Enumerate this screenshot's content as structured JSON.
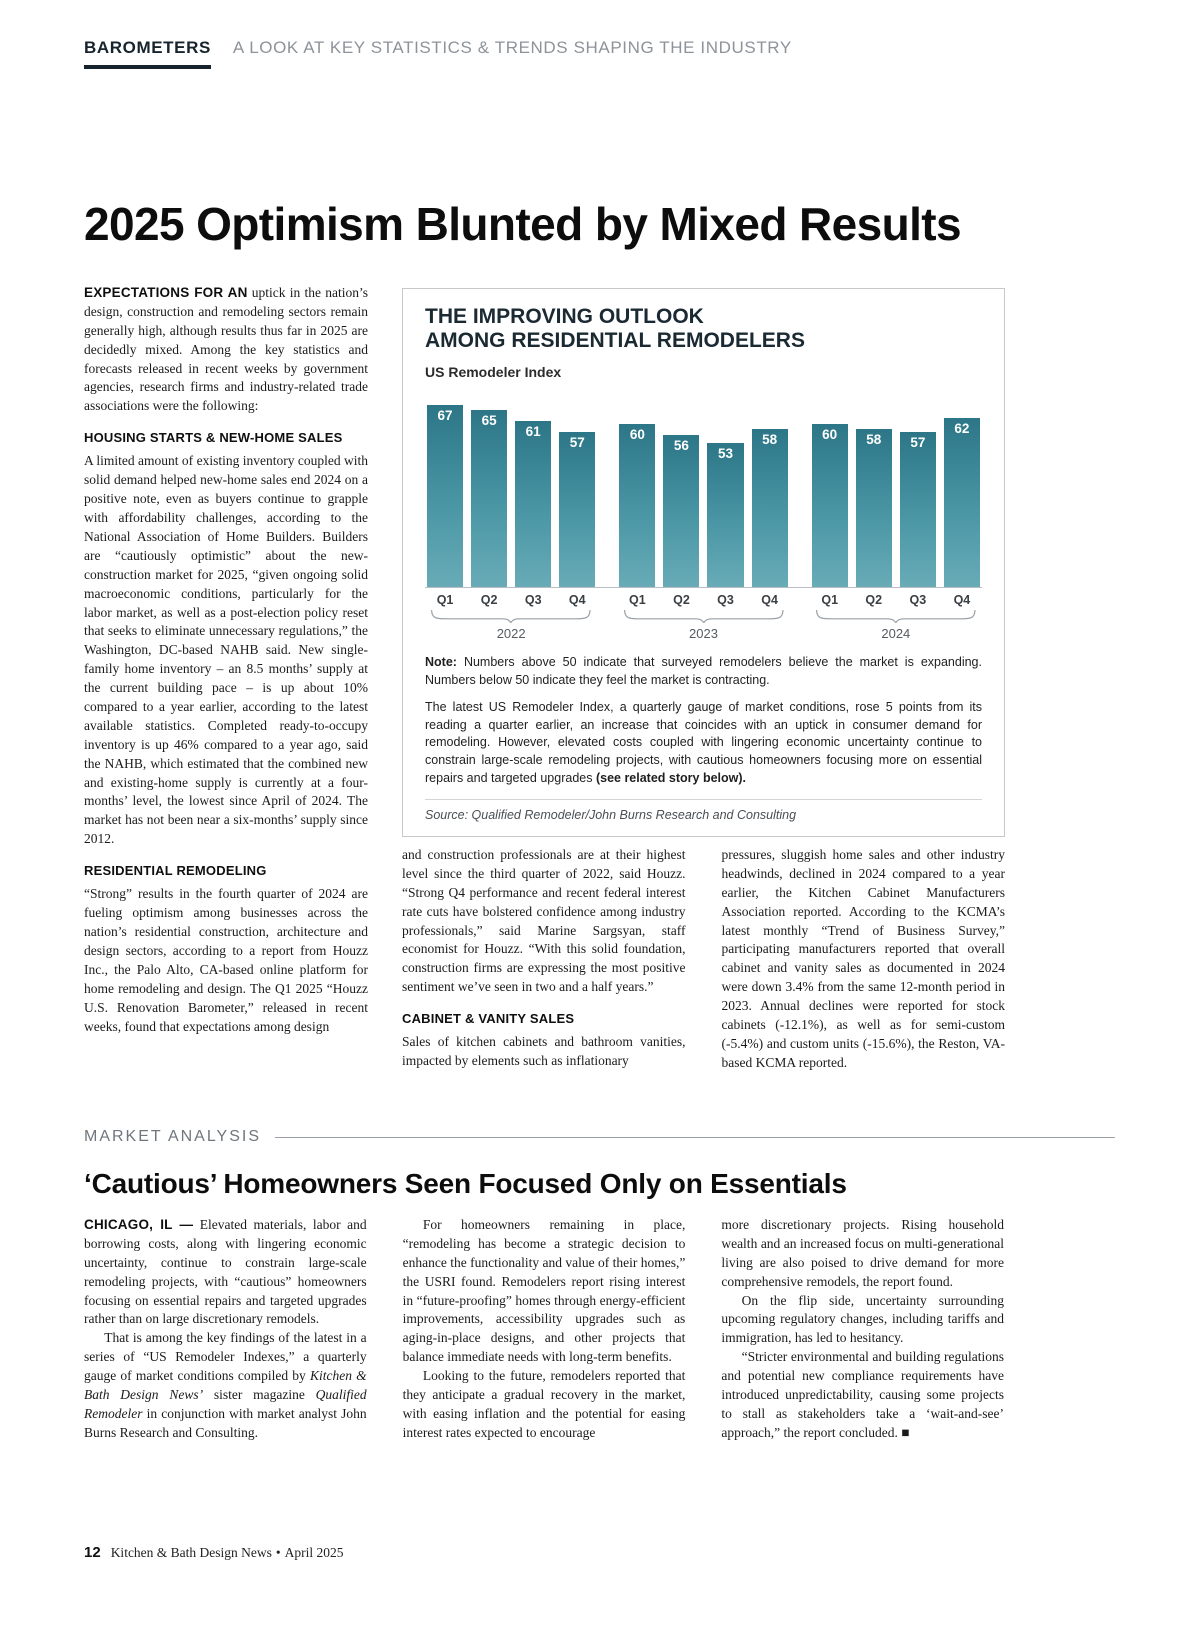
{
  "masthead": {
    "label": "BAROMETERS",
    "tagline": "A LOOK AT KEY STATISTICS & TRENDS SHAPING THE INDUSTRY"
  },
  "headline": "2025 Optimism Blunted by Mixed Results",
  "article": {
    "intro_lead": "EXPECTATIONS FOR AN",
    "intro_text": "uptick in the nation’s design, construction and remodeling sectors remain generally high, although results thus far in 2025 are decidedly mixed. Among the key statistics and forecasts released in recent weeks by government agencies, research firms and industry-related trade associations were the following:",
    "housing": {
      "heading": "HOUSING STARTS & NEW-HOME SALES",
      "text": "A limited amount of existing inventory coupled with solid demand helped new-home sales end 2024 on a positive note, even as buyers continue to grapple with affordability challenges, according to the National Association of Home Builders. Builders are “cautiously optimistic” about the new-construction market for 2025, “given ongoing solid macroeconomic conditions, particularly for the labor market, as well as a post-election policy reset that seeks to eliminate unnecessary regulations,” the Washington, DC-based NAHB said. New single-family home inventory – an 8.5 months’ supply at the current building pace – is up about 10% compared to a year earlier, according to the latest available statistics. Completed ready-to-occupy inventory is up 46% compared to a year ago, said the NAHB, which estimated that the combined new and existing-home supply is currently at a four-months’ level, the lowest since April of 2024. The market has not been near a six-months’ supply since 2012."
    },
    "remodeling": {
      "heading": "RESIDENTIAL REMODELING",
      "col1_text": "“Strong” results in the fourth quarter of 2024 are fueling optimism among businesses across the nation’s residential construction, architecture and design sectors, according to a report from Houzz Inc., the Palo Alto, CA-based online platform for home remodeling and design. The Q1 2025 “Houzz U.S. Renovation Barometer,” released in recent weeks, found that expectations among design",
      "col2_text": "and construction professionals are at their highest level since the third quarter of 2022, said Houzz. “Strong Q4 performance and recent federal interest rate cuts have bolstered confidence among industry professionals,” said Marine Sargsyan, staff economist for Houzz. “With this solid foundation, construction firms are expressing the most positive sentiment we’ve seen in two and a half years.”"
    },
    "cabinet": {
      "heading": "CABINET & VANITY SALES",
      "col2_text": "Sales of kitchen cabinets and bathroom vanities, impacted by elements such as inflationary",
      "col3_text": "pressures, sluggish home sales and other industry headwinds, declined in 2024 compared to a year earlier, the Kitchen Cabinet Manufacturers Association reported. According to the KCMA’s latest monthly “Trend of Business Survey,” participating manufacturers reported that overall cabinet and vanity sales as documented in 2024 were down 3.4% from the same 12-month period in 2023. Annual declines were reported for stock cabinets (-12.1%), as well as for semi-custom (-5.4%) and custom units (-15.6%), the Reston, VA-based KCMA reported."
    }
  },
  "panel": {
    "title_line1": "THE IMPROVING OUTLOOK",
    "title_line2": "AMONG RESIDENTIAL REMODELERS",
    "subtitle": "US Remodeler Index",
    "note_label": "Note:",
    "note_text": "Numbers above 50 indicate that surveyed remodelers believe the market is expanding. Numbers below 50 indicate they feel the market is contracting.",
    "body_text": "The latest US Remodeler Index, a quarterly gauge of market conditions, rose 5 points from its reading a quarter earlier, an increase that coincides with an uptick in consumer demand for remodeling. However, elevated costs coupled with lingering economic uncertainty continue to constrain large-scale remodeling projects, with cautious homeowners focusing more on essential repairs and targeted upgrades ",
    "body_bold": "(see related story below).",
    "source": "Source: Qualified Remodeler/John Burns Research and Consulting"
  },
  "chart_data": {
    "type": "bar",
    "title": "THE IMPROVING OUTLOOK AMONG RESIDENTIAL REMODELERS",
    "subtitle": "US Remodeler Index",
    "categories": [
      "Q1",
      "Q2",
      "Q3",
      "Q4"
    ],
    "groups": [
      {
        "year": "2022",
        "values": [
          67,
          65,
          61,
          57
        ]
      },
      {
        "year": "2023",
        "values": [
          60,
          56,
          53,
          58
        ]
      },
      {
        "year": "2024",
        "values": [
          60,
          58,
          57,
          62
        ]
      }
    ],
    "ylim": [
      0,
      70
    ],
    "grid": false,
    "threshold_note": "50 = expansion/contraction line",
    "bar_color_top": "#2c7687",
    "bar_color_bottom": "#68abb7",
    "value_label_color": "#ffffff"
  },
  "market_analysis": {
    "kicker": "MARKET ANALYSIS",
    "headline": "‘Cautious’ Homeowners Seen Focused Only on Essentials",
    "col1": {
      "lead": "CHICAGO, IL —",
      "p1": "Elevated materials, labor and borrowing costs, along with lingering economic uncertainty, continue to constrain large-scale remodeling projects, with “cautious” homeowners focusing on essential repairs and targeted upgrades rather than on large discretionary remodels.",
      "p2_start": "That is among the key findings of the latest in a series of “US Remodeler Indexes,” a quarterly gauge of market conditions compiled by ",
      "p2_italic1": "Kitchen & Bath Design News’",
      "p2_mid": " sister magazine ",
      "p2_italic2": "Qualified Remodeler",
      "p2_end": " in conjunction with market analyst John Burns Research and Consulting."
    },
    "col2": {
      "p1": "For homeowners remaining in place, “remodeling has become a strategic decision to enhance the functionality and value of their homes,” the USRI found. Remodelers report rising interest in “future-proofing” homes through energy-efficient improvements, accessibility upgrades such as aging-in-place designs, and other projects that balance immediate needs with long-term benefits.",
      "p2": "Looking to the future, remodelers reported that they anticipate a gradual recovery in the market, with easing inflation and the potential for easing interest rates expected to encourage"
    },
    "col3": {
      "p1": "more discretionary projects. Rising household wealth and an increased focus on multi-generational living are also poised to drive demand for more comprehensive remodels, the report found.",
      "p2": "On the flip side, uncertainty surrounding upcoming regulatory changes, including tariffs and immigration, has led to hesitancy.",
      "p3": "“Stricter environmental and building regulations and potential new compliance requirements have introduced unpredictability, causing some projects to stall as stakeholders take a ‘wait-and-see’ approach,” the report concluded. ■"
    }
  },
  "footer": {
    "page_number": "12",
    "publication": "Kitchen & Bath Design News",
    "bullet": "•",
    "issue": "April 2025"
  }
}
